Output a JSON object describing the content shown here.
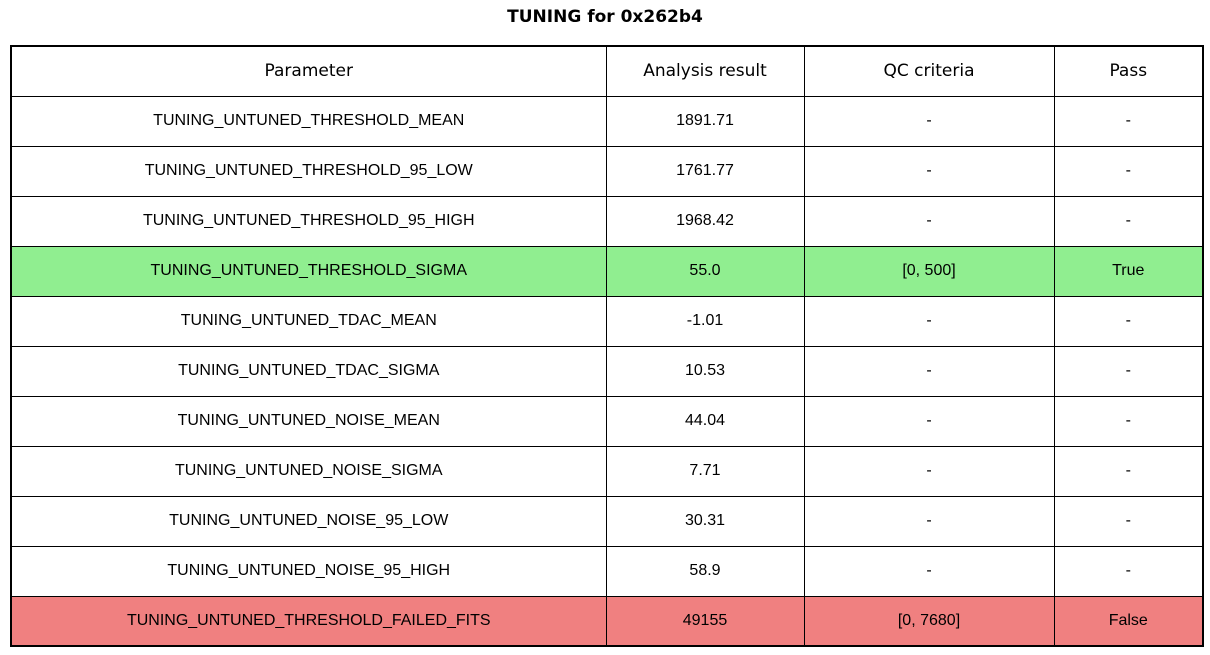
{
  "chart_data": {
    "type": "table",
    "title": "TUNING for 0x262b4",
    "columns": [
      "Parameter",
      "Analysis result",
      "QC criteria",
      "Pass"
    ],
    "rows": [
      [
        "TUNING_UNTUNED_THRESHOLD_MEAN",
        "1891.71",
        "-",
        "-"
      ],
      [
        "TUNING_UNTUNED_THRESHOLD_95_LOW",
        "1761.77",
        "-",
        "-"
      ],
      [
        "TUNING_UNTUNED_THRESHOLD_95_HIGH",
        "1968.42",
        "-",
        "-"
      ],
      [
        "TUNING_UNTUNED_THRESHOLD_SIGMA",
        "55.0",
        "[0, 500]",
        "True"
      ],
      [
        "TUNING_UNTUNED_TDAC_MEAN",
        "-1.01",
        "-",
        "-"
      ],
      [
        "TUNING_UNTUNED_TDAC_SIGMA",
        "10.53",
        "-",
        "-"
      ],
      [
        "TUNING_UNTUNED_NOISE_MEAN",
        "44.04",
        "-",
        "-"
      ],
      [
        "TUNING_UNTUNED_NOISE_SIGMA",
        "7.71",
        "-",
        "-"
      ],
      [
        "TUNING_UNTUNED_NOISE_95_LOW",
        "30.31",
        "-",
        "-"
      ],
      [
        "TUNING_UNTUNED_NOISE_95_HIGH",
        "58.9",
        "-",
        "-"
      ],
      [
        "TUNING_UNTUNED_THRESHOLD_FAILED_FITS",
        "49155",
        "[0, 7680]",
        "False"
      ]
    ],
    "row_status": [
      "none",
      "none",
      "none",
      "pass",
      "none",
      "none",
      "none",
      "none",
      "none",
      "none",
      "fail"
    ],
    "grid": true,
    "legend_position": "none"
  },
  "colors": {
    "pass_row_background": "#90ee90",
    "fail_row_background": "#f08080",
    "border": "#000000",
    "text": "#000000",
    "page_background": "#ffffff"
  }
}
